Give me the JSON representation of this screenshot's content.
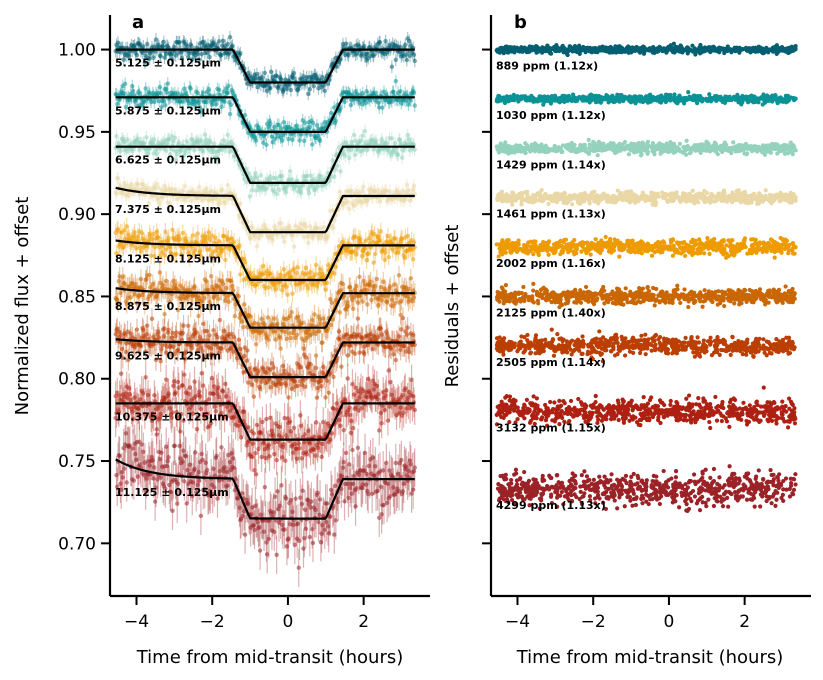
{
  "chart_data": [
    {
      "panel": "a",
      "type": "scatter",
      "xlabel": "Time from mid-transit (hours)",
      "ylabel": "Normalized flux + offset",
      "xlim": [
        -4.7,
        3.7
      ],
      "ylim": [
        0.668,
        1.021
      ],
      "xticks": [
        -4,
        -2,
        0,
        2
      ],
      "xtick_labels": [
        "−4",
        "−2",
        "0",
        "2"
      ],
      "yticks": [
        0.7,
        0.75,
        0.8,
        0.85,
        0.9,
        0.95,
        1.0
      ],
      "ytick_labels": [
        "0.70",
        "0.75",
        "0.80",
        "0.85",
        "0.90",
        "0.95",
        "1.00"
      ],
      "transit": {
        "ingress_start": -1.45,
        "ingress_end": -1.0,
        "egress_start": 1.0,
        "egress_end": 1.45
      },
      "series": [
        {
          "name": "5.125 ± 0.125μm",
          "color": "#045f73",
          "baseline": 1.0,
          "depth": 0.02,
          "scatter": 0.003,
          "ramp": 0.0
        },
        {
          "name": "5.875 ± 0.125μm",
          "color": "#0a9396",
          "baseline": 0.971,
          "depth": 0.021,
          "scatter": 0.003,
          "ramp": 0.0
        },
        {
          "name": "6.625 ± 0.125μm",
          "color": "#94d2bd",
          "baseline": 0.941,
          "depth": 0.022,
          "scatter": 0.003,
          "ramp": 0.0
        },
        {
          "name": "7.375 ± 0.125μm",
          "color": "#e9d8a6",
          "baseline": 0.911,
          "depth": 0.022,
          "scatter": 0.003,
          "ramp": 0.005
        },
        {
          "name": "8.125 ± 0.125μm",
          "color": "#ee9b00",
          "baseline": 0.881,
          "depth": 0.021,
          "scatter": 0.004,
          "ramp": 0.003
        },
        {
          "name": "8.875 ± 0.125μm",
          "color": "#ca6702",
          "baseline": 0.852,
          "depth": 0.021,
          "scatter": 0.0045,
          "ramp": 0.003
        },
        {
          "name": "9.625 ± 0.125μm",
          "color": "#bb3e03",
          "baseline": 0.822,
          "depth": 0.021,
          "scatter": 0.005,
          "ramp": 0.002
        },
        {
          "name": "10.375 ± 0.125μm",
          "color": "#ae2012",
          "baseline": 0.785,
          "depth": 0.022,
          "scatter": 0.007,
          "ramp": 0.0
        },
        {
          "name": "11.125 ± 0.125μm",
          "color": "#9b2226",
          "baseline": 0.739,
          "depth": 0.024,
          "scatter": 0.009,
          "ramp": 0.012
        }
      ]
    },
    {
      "panel": "b",
      "type": "scatter",
      "xlabel": "Time from mid-transit (hours)",
      "ylabel": "Residuals + offset",
      "xlim": [
        -4.7,
        3.7
      ],
      "ylim": [
        0.668,
        1.021
      ],
      "xticks": [
        -4,
        -2,
        0,
        2
      ],
      "xtick_labels": [
        "−4",
        "−2",
        "0",
        "2"
      ],
      "yticks": [
        0.7,
        0.75,
        0.8,
        0.85,
        0.9,
        0.95,
        1.0
      ],
      "series": [
        {
          "label": "889 ppm (1.12x)",
          "color": "#045f73",
          "offset": 1.0,
          "scatter": 0.0009
        },
        {
          "label": "1030 ppm (1.12x)",
          "color": "#0a9396",
          "offset": 0.97,
          "scatter": 0.001
        },
        {
          "label": "1429 ppm (1.14x)",
          "color": "#94d2bd",
          "offset": 0.94,
          "scatter": 0.0014
        },
        {
          "label": "1461 ppm (1.13x)",
          "color": "#e9d8a6",
          "offset": 0.91,
          "scatter": 0.0015
        },
        {
          "label": "2002 ppm (1.16x)",
          "color": "#ee9b00",
          "offset": 0.88,
          "scatter": 0.002
        },
        {
          "label": "2125 ppm (1.40x)",
          "color": "#ca6702",
          "offset": 0.85,
          "scatter": 0.0021
        },
        {
          "label": "2505 ppm (1.14x)",
          "color": "#bb3e03",
          "offset": 0.82,
          "scatter": 0.0025
        },
        {
          "label": "3132 ppm (1.15x)",
          "color": "#ae2012",
          "offset": 0.78,
          "scatter": 0.0031
        },
        {
          "label": "4299 ppm (1.13x)",
          "color": "#9b2226",
          "offset": 0.733,
          "scatter": 0.0043
        }
      ]
    }
  ],
  "time_range": [
    -4.55,
    3.35
  ]
}
